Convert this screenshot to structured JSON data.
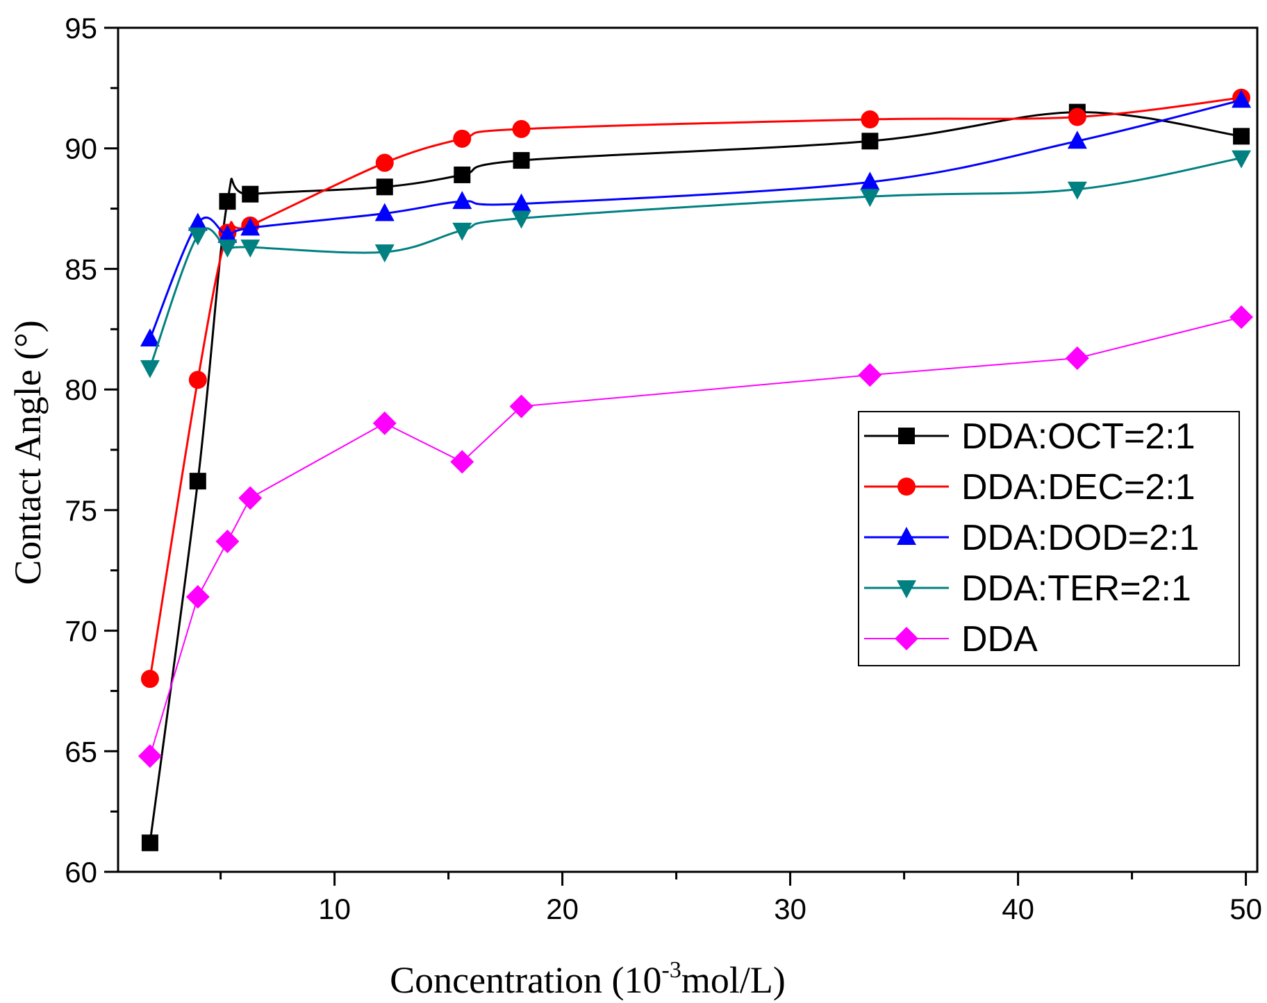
{
  "chart_data": {
    "type": "line",
    "title": "",
    "xlabel": {
      "prefix": "Concentration (10",
      "sup": "-3",
      "suffix": "mol/L)"
    },
    "ylabel": "Contact Angle (°)",
    "xlim": [
      0.5,
      50.5
    ],
    "ylim": [
      60,
      95
    ],
    "xticks": [
      10,
      20,
      30,
      40,
      50
    ],
    "xminor": [
      5,
      15,
      25,
      35,
      45
    ],
    "yticks": [
      60,
      65,
      70,
      75,
      80,
      85,
      90,
      95
    ],
    "yminor": [
      62.5,
      67.5,
      72.5,
      77.5,
      82.5,
      87.5,
      92.5
    ],
    "x": [
      1.9,
      4.0,
      5.3,
      6.3,
      12.2,
      15.6,
      18.2,
      33.5,
      42.6,
      49.8
    ],
    "legend_position": "right",
    "series": [
      {
        "name": "DDA:OCT=2:1",
        "color": "#000000",
        "marker": "square",
        "smooth": true,
        "values": [
          61.2,
          76.2,
          87.8,
          88.1,
          88.4,
          88.9,
          89.5,
          90.3,
          91.5,
          90.5
        ]
      },
      {
        "name": "DDA:DEC=2:1",
        "color": "#ff0000",
        "marker": "circle",
        "smooth": true,
        "values": [
          68.0,
          80.4,
          86.5,
          86.8,
          89.4,
          90.4,
          90.8,
          91.2,
          91.3,
          92.1
        ]
      },
      {
        "name": "DDA:DOD=2:1",
        "color": "#0000ff",
        "marker": "triangle-up",
        "smooth": true,
        "values": [
          82.1,
          86.9,
          86.4,
          86.7,
          87.3,
          87.8,
          87.7,
          88.6,
          90.3,
          92.0
        ]
      },
      {
        "name": "DDA:TER=2:1",
        "color": "#008080",
        "marker": "triangle-down",
        "smooth": true,
        "values": [
          80.9,
          86.4,
          85.9,
          85.9,
          85.7,
          86.6,
          87.1,
          88.0,
          88.3,
          89.6
        ]
      },
      {
        "name": "DDA",
        "color": "#ff00ff",
        "marker": "diamond",
        "smooth": false,
        "values": [
          64.8,
          71.4,
          73.7,
          75.5,
          78.6,
          77.0,
          79.3,
          80.6,
          81.3,
          83.0
        ]
      }
    ]
  }
}
